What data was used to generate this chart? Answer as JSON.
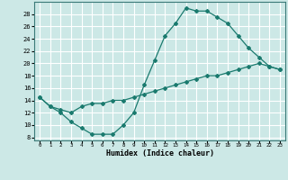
{
  "xlabel": "Humidex (Indice chaleur)",
  "ylabel": "",
  "bg_color": "#cce8e6",
  "grid_color": "#ffffff",
  "line_color": "#1a7a6e",
  "xlim": [
    -0.5,
    23.5
  ],
  "ylim": [
    7.5,
    30
  ],
  "xticks": [
    0,
    1,
    2,
    3,
    4,
    5,
    6,
    7,
    8,
    9,
    10,
    11,
    12,
    13,
    14,
    15,
    16,
    17,
    18,
    19,
    20,
    21,
    22,
    23
  ],
  "yticks": [
    8,
    10,
    12,
    14,
    16,
    18,
    20,
    22,
    24,
    26,
    28
  ],
  "line1_x": [
    0,
    1,
    2,
    3,
    4,
    5,
    6,
    7,
    8,
    9,
    10,
    11,
    12,
    13,
    14,
    15,
    16,
    17,
    18,
    19,
    20,
    21,
    22,
    23
  ],
  "line1_y": [
    14.5,
    13.0,
    12.0,
    10.5,
    9.5,
    8.5,
    8.5,
    8.5,
    10.0,
    12.0,
    16.5,
    20.5,
    24.5,
    26.5,
    29.0,
    28.5,
    28.5,
    27.5,
    26.5,
    24.5,
    22.5,
    21.0,
    19.5,
    19.0
  ],
  "line2_x": [
    0,
    1,
    2,
    3,
    4,
    5,
    6,
    7,
    8,
    9,
    10,
    11,
    12,
    13,
    14,
    15,
    16,
    17,
    18,
    19,
    20,
    21,
    22,
    23
  ],
  "line2_y": [
    14.5,
    13.0,
    12.5,
    12.0,
    13.0,
    13.5,
    13.5,
    14.0,
    14.0,
    14.5,
    15.0,
    15.5,
    16.0,
    16.5,
    17.0,
    17.5,
    18.0,
    18.0,
    18.5,
    19.0,
    19.5,
    20.0,
    19.5,
    19.0
  ]
}
